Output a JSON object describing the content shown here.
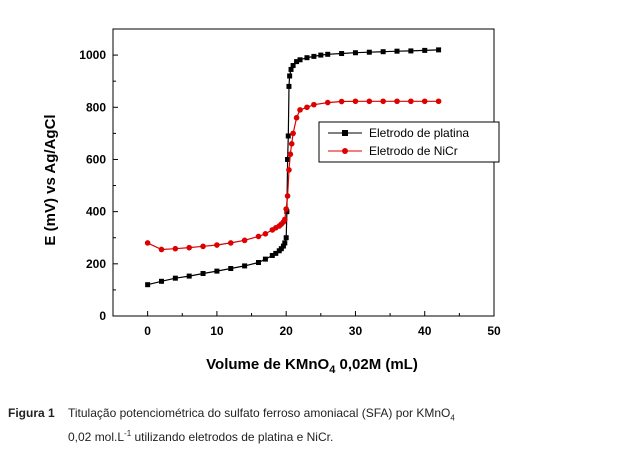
{
  "chart_data": {
    "type": "scatter",
    "xlabel": "Volume de KMnO",
    "xlabel_sub": "4",
    "xlabel_rest": " 0,02M (mL)",
    "ylabel": "E (mV) vs Ag/AgCl",
    "xlim": [
      -5,
      50
    ],
    "ylim": [
      0,
      1100
    ],
    "xticks": [
      0,
      10,
      20,
      30,
      40,
      50
    ],
    "yticks": [
      0,
      200,
      400,
      600,
      800,
      1000
    ],
    "legend_position": "center-right",
    "series": [
      {
        "name": "Eletrodo de platina",
        "color": "#000000",
        "marker": "square",
        "x": [
          0,
          2,
          4,
          6,
          8,
          10,
          12,
          14,
          16,
          17,
          18,
          18.5,
          19,
          19.3,
          19.6,
          19.8,
          20,
          20.1,
          20.2,
          20.3,
          20.4,
          20.5,
          20.7,
          21,
          21.5,
          22,
          23,
          24,
          25,
          26,
          28,
          30,
          32,
          34,
          36,
          38,
          40,
          42
        ],
        "y": [
          120,
          133,
          145,
          153,
          163,
          172,
          182,
          192,
          205,
          218,
          232,
          240,
          250,
          258,
          268,
          280,
          300,
          400,
          600,
          690,
          880,
          920,
          945,
          960,
          975,
          982,
          990,
          995,
          1000,
          1003,
          1006,
          1009,
          1011,
          1013,
          1015,
          1016,
          1018,
          1020
        ]
      },
      {
        "name": "Eletrodo de NiCr",
        "color": "#dd0000",
        "marker": "circle",
        "x": [
          0,
          2,
          4,
          6,
          8,
          10,
          12,
          14,
          16,
          17,
          18,
          18.5,
          19,
          19.3,
          19.6,
          19.8,
          20,
          20.2,
          20.4,
          20.6,
          20.8,
          21,
          21.5,
          22,
          23,
          24,
          26,
          28,
          30,
          32,
          34,
          36,
          38,
          40,
          42
        ],
        "y": [
          280,
          255,
          258,
          262,
          267,
          272,
          280,
          290,
          305,
          315,
          330,
          338,
          345,
          352,
          360,
          370,
          410,
          460,
          560,
          620,
          660,
          700,
          760,
          790,
          800,
          810,
          818,
          822,
          823,
          823,
          823,
          823,
          823,
          823,
          823
        ]
      }
    ]
  },
  "caption": {
    "label": "Figura 1",
    "line1": "Titulação potenciométrica do sulfato ferroso amoniacal (SFA) por KMnO",
    "line1_sub": "4",
    "line2_start": "0,02 mol.L",
    "line2_sup": "-1",
    "line2_end": " utilizando eletrodos de platina e NiCr."
  }
}
